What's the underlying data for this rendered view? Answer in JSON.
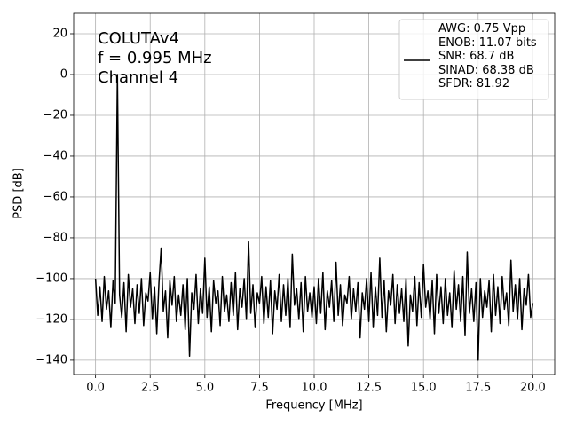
{
  "chart_data": {
    "type": "line",
    "annotation": [
      "COLUTAv4",
      "f = 0.995 MHz",
      "Channel 4"
    ],
    "x_label": "Frequency [MHz]",
    "y_label": "PSD [dB]",
    "x": [
      0,
      0.1,
      0.2,
      0.3,
      0.4,
      0.5,
      0.6,
      0.7,
      0.8,
      0.9,
      1,
      1.1,
      1.2,
      1.3,
      1.4,
      1.5,
      1.6,
      1.7,
      1.8,
      1.9,
      2,
      2.1,
      2.2,
      2.3,
      2.4,
      2.5,
      2.6,
      2.7,
      2.8,
      2.9,
      3,
      3.1,
      3.2,
      3.3,
      3.4,
      3.5,
      3.6,
      3.7,
      3.8,
      3.9,
      4,
      4.1,
      4.2,
      4.3,
      4.4,
      4.5,
      4.6,
      4.7,
      4.8,
      4.9,
      5,
      5.1,
      5.2,
      5.3,
      5.4,
      5.5,
      5.6,
      5.7,
      5.8,
      5.9,
      6,
      6.1,
      6.2,
      6.3,
      6.4,
      6.5,
      6.6,
      6.7,
      6.8,
      6.9,
      7,
      7.1,
      7.2,
      7.3,
      7.4,
      7.5,
      7.6,
      7.7,
      7.8,
      7.9,
      8,
      8.1,
      8.2,
      8.3,
      8.4,
      8.5,
      8.6,
      8.7,
      8.8,
      8.9,
      9,
      9.1,
      9.2,
      9.3,
      9.4,
      9.5,
      9.6,
      9.7,
      9.8,
      9.9,
      10,
      10.1,
      10.2,
      10.3,
      10.4,
      10.5,
      10.6,
      10.7,
      10.8,
      10.9,
      11,
      11.1,
      11.2,
      11.3,
      11.4,
      11.5,
      11.6,
      11.7,
      11.8,
      11.9,
      12,
      12.1,
      12.2,
      12.3,
      12.4,
      12.5,
      12.6,
      12.7,
      12.8,
      12.9,
      13,
      13.1,
      13.2,
      13.3,
      13.4,
      13.5,
      13.6,
      13.7,
      13.8,
      13.9,
      14,
      14.1,
      14.2,
      14.3,
      14.4,
      14.5,
      14.6,
      14.7,
      14.8,
      14.9,
      15,
      15.1,
      15.2,
      15.3,
      15.4,
      15.5,
      15.6,
      15.7,
      15.8,
      15.9,
      16,
      16.1,
      16.2,
      16.3,
      16.4,
      16.5,
      16.6,
      16.7,
      16.8,
      16.9,
      17,
      17.1,
      17.2,
      17.3,
      17.4,
      17.5,
      17.6,
      17.7,
      17.8,
      17.9,
      18,
      18.1,
      18.2,
      18.3,
      18.4,
      18.5,
      18.6,
      18.7,
      18.8,
      18.9,
      19,
      19.1,
      19.2,
      19.3,
      19.4,
      19.5,
      19.6,
      19.7,
      19.8,
      19.9,
      20
    ],
    "series": [
      {
        "name": "AWG: 0.75 Vpp\nENOB: 11.07 bits\nSNR: 68.7 dB\nSINAD: 68.38 dB\nSFDR: 81.92",
        "color": "#000000",
        "values": [
          -100,
          -118,
          -104,
          -121,
          -99,
          -115,
          -106,
          -124,
          -101,
          -112,
          0,
          -108,
          -119,
          -102,
          -126,
          -98,
          -114,
          -105,
          -122,
          -103,
          -117,
          -100,
          -123,
          -107,
          -111,
          -97,
          -120,
          -104,
          -127,
          -102,
          -85,
          -116,
          -106,
          -129,
          -101,
          -113,
          -99,
          -121,
          -108,
          -118,
          -103,
          -125,
          -100,
          -138,
          -107,
          -115,
          -98,
          -122,
          -105,
          -117,
          -90,
          -119,
          -104,
          -126,
          -101,
          -112,
          -106,
          -123,
          -99,
          -116,
          -108,
          -121,
          -102,
          -118,
          -97,
          -125,
          -105,
          -114,
          -100,
          -120,
          -82,
          -117,
          -103,
          -124,
          -107,
          -112,
          -99,
          -122,
          -104,
          -119,
          -101,
          -127,
          -106,
          -115,
          -98,
          -121,
          -103,
          -118,
          -100,
          -124,
          -88,
          -113,
          -105,
          -120,
          -102,
          -126,
          -99,
          -116,
          -107,
          -119,
          -104,
          -122,
          -100,
          -117,
          -97,
          -125,
          -106,
          -114,
          -101,
          -121,
          -92,
          -118,
          -103,
          -123,
          -108,
          -112,
          -99,
          -120,
          -105,
          -116,
          -102,
          -129,
          -107,
          -115,
          -100,
          -121,
          -97,
          -124,
          -104,
          -118,
          -90,
          -119,
          -101,
          -126,
          -106,
          -113,
          -98,
          -122,
          -103,
          -117,
          -105,
          -121,
          -100,
          -133,
          -108,
          -116,
          -99,
          -123,
          -102,
          -119,
          -93,
          -114,
          -106,
          -120,
          -101,
          -127,
          -98,
          -117,
          -104,
          -122,
          -100,
          -118,
          -107,
          -124,
          -96,
          -115,
          -103,
          -121,
          -99,
          -128,
          -87,
          -117,
          -105,
          -121,
          -102,
          -140,
          -100,
          -119,
          -106,
          -114,
          -101,
          -126,
          -98,
          -118,
          -104,
          -122,
          -99,
          -115,
          -107,
          -123,
          -91,
          -116,
          -103,
          -120,
          -100,
          -125,
          -105,
          -113,
          -98,
          -119,
          -112
        ]
      }
    ],
    "xlim": [
      -1,
      21
    ],
    "ylim": [
      -147,
      30
    ],
    "xticks": [
      {
        "value": 0,
        "label": "0.0"
      },
      2.5,
      {
        "value": 5,
        "label": "5.0"
      },
      7.5,
      {
        "value": 10,
        "label": "10.0"
      },
      12.5,
      {
        "value": 15,
        "label": "15.0"
      },
      17.5,
      {
        "value": 20,
        "label": "20.0"
      }
    ],
    "yticks": [
      20,
      0,
      {
        "value": -20,
        "label": "−20"
      },
      {
        "value": -40,
        "label": "−40"
      },
      {
        "value": -60,
        "label": "−60"
      },
      {
        "value": -80,
        "label": "−80"
      },
      {
        "value": -100,
        "label": "−100"
      },
      {
        "value": -120,
        "label": "−120"
      },
      {
        "value": -140,
        "label": "−140"
      }
    ],
    "grid": true,
    "legend": "upper right"
  }
}
